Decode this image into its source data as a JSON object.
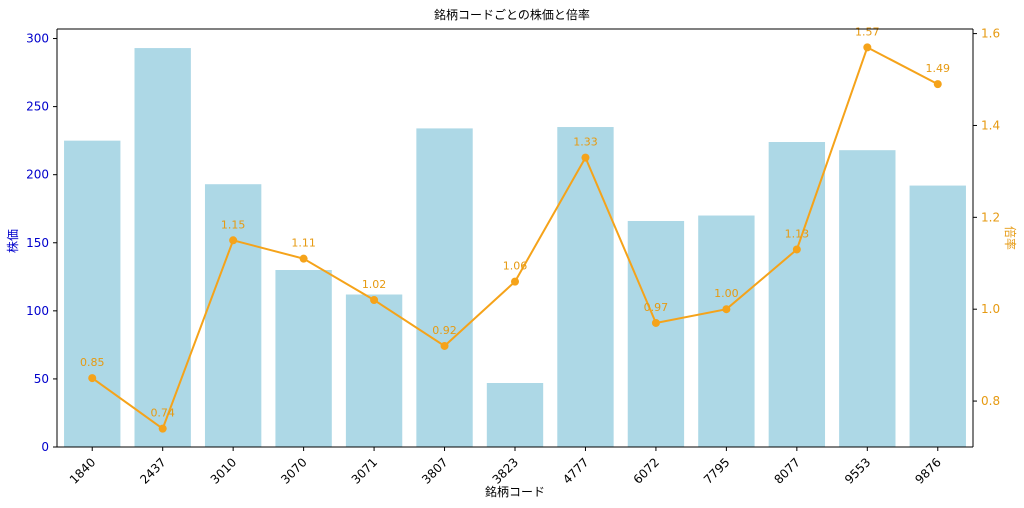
{
  "chart_data": {
    "type": "bar+line",
    "title": "銘柄コードごとの株価と倍率",
    "xlabel": "銘柄コード",
    "ylabel_left": "株価",
    "ylabel_right": "倍率",
    "categories": [
      "1840",
      "2437",
      "3010",
      "3070",
      "3071",
      "3807",
      "3823",
      "4777",
      "6072",
      "7795",
      "8077",
      "9553",
      "9876"
    ],
    "series": [
      {
        "type": "bar",
        "axis": "left",
        "color": "#add8e6",
        "values": [
          225,
          293,
          193,
          130,
          112,
          234,
          47,
          235,
          166,
          170,
          224,
          218,
          192
        ]
      },
      {
        "type": "line",
        "axis": "right",
        "color": "#f5a31a",
        "values": [
          0.85,
          0.74,
          1.15,
          1.11,
          1.02,
          0.92,
          1.06,
          1.33,
          0.97,
          1.0,
          1.13,
          1.57,
          1.49
        ],
        "labels": [
          "0.85",
          "0.74",
          "1.15",
          "1.11",
          "1.02",
          "0.92",
          "1.06",
          "1.33",
          "0.97",
          "1.00",
          "1.13",
          "1.57",
          "1.49"
        ]
      }
    ],
    "ylim_left": [
      0,
      307
    ],
    "yticks_left": [
      0,
      50,
      100,
      150,
      200,
      250,
      300
    ],
    "ylim_right": [
      0.7,
      1.61
    ],
    "yticks_right": [
      "0.8",
      "1.0",
      "1.2",
      "1.4",
      "1.6"
    ],
    "left_axis_color": "#0000cc",
    "right_axis_color": "#e69a12",
    "grid": false
  }
}
